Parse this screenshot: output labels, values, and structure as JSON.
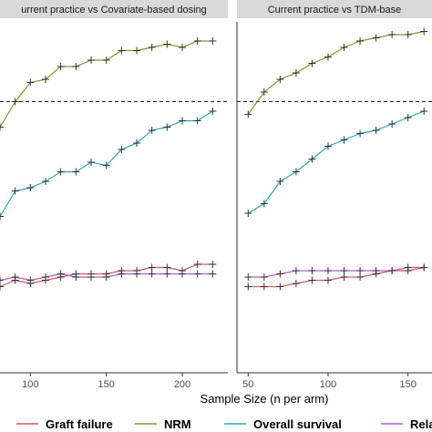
{
  "chart_data": {
    "type": "line",
    "xlabel": "Sample Size (n per arm)",
    "ylabel": "",
    "ylim": [
      0,
      1
    ],
    "reference_line": 0.8,
    "legend": {
      "position": "bottom"
    },
    "colors": {
      "Graft failure": "#d9595c",
      "NRM": "#7a9a2a",
      "Overall survival": "#2aa7b5",
      "Relapse": "#b65ad4"
    },
    "panels": [
      {
        "title": "urrent practice vs Covariate-based dosing",
        "xlim": [
          80,
          230
        ],
        "xticks": [
          100,
          150,
          200
        ],
        "x": [
          80,
          90,
          100,
          110,
          120,
          130,
          140,
          150,
          160,
          170,
          180,
          190,
          200,
          210,
          220
        ],
        "series": [
          {
            "name": "NRM",
            "values": [
              0.72,
              0.8,
              0.86,
              0.87,
              0.91,
              0.91,
              0.93,
              0.93,
              0.96,
              0.96,
              0.97,
              0.98,
              0.97,
              0.99,
              0.99
            ]
          },
          {
            "name": "Overall survival",
            "values": [
              0.44,
              0.52,
              0.53,
              0.55,
              0.58,
              0.58,
              0.61,
              0.6,
              0.65,
              0.67,
              0.71,
              0.72,
              0.74,
              0.74,
              0.77
            ]
          },
          {
            "name": "Graft failure",
            "values": [
              0.22,
              0.24,
              0.23,
              0.24,
              0.25,
              0.26,
              0.26,
              0.26,
              0.27,
              0.27,
              0.28,
              0.28,
              0.27,
              0.29,
              0.29
            ]
          },
          {
            "name": "Relapse",
            "values": [
              0.24,
              0.25,
              0.24,
              0.25,
              0.26,
              0.25,
              0.25,
              0.25,
              0.26,
              0.26,
              0.26,
              0.26,
              0.26,
              0.26,
              0.26
            ]
          }
        ]
      },
      {
        "title": "Current practice vs TDM-base",
        "xlim": [
          43,
          165
        ],
        "xticks": [
          50,
          100,
          150
        ],
        "x": [
          50,
          60,
          70,
          80,
          90,
          100,
          110,
          120,
          130,
          140,
          150,
          160
        ],
        "series": [
          {
            "name": "NRM",
            "values": [
              0.76,
              0.83,
              0.87,
              0.89,
              0.92,
              0.94,
              0.97,
              0.99,
              1.0,
              1.01,
              1.01,
              1.02
            ]
          },
          {
            "name": "Overall survival",
            "values": [
              0.45,
              0.48,
              0.55,
              0.58,
              0.62,
              0.66,
              0.68,
              0.7,
              0.71,
              0.73,
              0.75,
              0.77
            ]
          },
          {
            "name": "Graft failure",
            "values": [
              0.22,
              0.22,
              0.22,
              0.23,
              0.24,
              0.24,
              0.25,
              0.25,
              0.26,
              0.27,
              0.27,
              0.28
            ]
          },
          {
            "name": "Relapse",
            "values": [
              0.25,
              0.25,
              0.26,
              0.27,
              0.27,
              0.27,
              0.27,
              0.27,
              0.27,
              0.27,
              0.28,
              0.28
            ]
          }
        ]
      }
    ],
    "legend_entries": [
      "Graft failure",
      "NRM",
      "Overall survival",
      "Relap"
    ]
  }
}
